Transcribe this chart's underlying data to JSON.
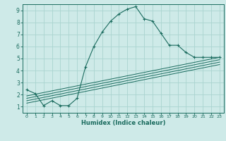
{
  "xlabel": "Humidex (Indice chaleur)",
  "bg_color": "#ceeae8",
  "grid_color": "#aad4d0",
  "line_color": "#1a6b5e",
  "xlim": [
    -0.5,
    23.5
  ],
  "ylim": [
    0.5,
    9.5
  ],
  "xticks": [
    0,
    1,
    2,
    3,
    4,
    5,
    6,
    7,
    8,
    9,
    10,
    11,
    12,
    13,
    14,
    15,
    16,
    17,
    18,
    19,
    20,
    21,
    22,
    23
  ],
  "yticks": [
    1,
    2,
    3,
    4,
    5,
    6,
    7,
    8,
    9
  ],
  "curve1_x": [
    0,
    1,
    2,
    3,
    4,
    5,
    6,
    7,
    8,
    9,
    10,
    11,
    12,
    13,
    14,
    15,
    16,
    17,
    18,
    19,
    20,
    21,
    22,
    23
  ],
  "curve1_y": [
    2.4,
    2.1,
    1.1,
    1.5,
    1.1,
    1.1,
    1.7,
    4.3,
    6.0,
    7.2,
    8.1,
    8.7,
    9.1,
    9.3,
    8.3,
    8.1,
    7.1,
    6.1,
    6.1,
    5.5,
    5.1,
    5.1,
    5.1,
    5.1
  ],
  "line2_x": [
    0,
    23
  ],
  "line2_y": [
    1.9,
    5.1
  ],
  "line3_x": [
    0,
    23
  ],
  "line3_y": [
    1.7,
    4.9
  ],
  "line4_x": [
    0,
    23
  ],
  "line4_y": [
    1.5,
    4.7
  ],
  "line5_x": [
    0,
    23
  ],
  "line5_y": [
    1.3,
    4.5
  ]
}
